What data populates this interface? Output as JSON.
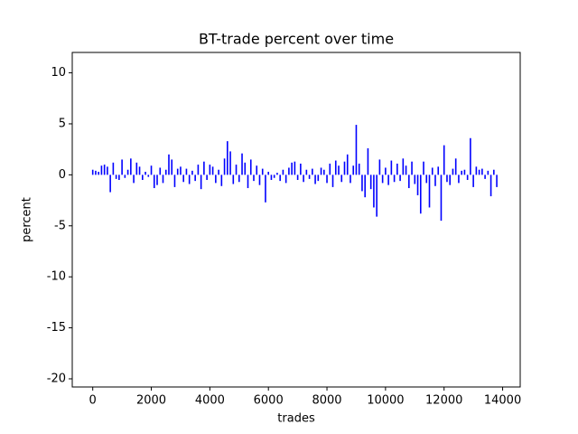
{
  "chart_data": {
    "type": "bar",
    "title": "BT-trade percent over time",
    "xlabel": "trades",
    "ylabel": "percent",
    "color": "#0000ff",
    "x": [
      0,
      100,
      200,
      300,
      400,
      500,
      600,
      700,
      800,
      900,
      1000,
      1100,
      1200,
      1300,
      1400,
      1500,
      1600,
      1700,
      1800,
      1900,
      2000,
      2100,
      2200,
      2300,
      2400,
      2500,
      2600,
      2700,
      2800,
      2900,
      3000,
      3100,
      3200,
      3300,
      3400,
      3500,
      3600,
      3700,
      3800,
      3900,
      4000,
      4100,
      4200,
      4300,
      4400,
      4500,
      4600,
      4700,
      4800,
      4900,
      5000,
      5100,
      5200,
      5300,
      5400,
      5500,
      5600,
      5700,
      5800,
      5900,
      6000,
      6100,
      6200,
      6300,
      6400,
      6500,
      6600,
      6700,
      6800,
      6900,
      7000,
      7100,
      7200,
      7300,
      7400,
      7500,
      7600,
      7700,
      7800,
      7900,
      8000,
      8100,
      8200,
      8300,
      8400,
      8500,
      8600,
      8700,
      8800,
      8900,
      9000,
      9100,
      9200,
      9300,
      9400,
      9500,
      9600,
      9700,
      9800,
      9900,
      10000,
      10100,
      10200,
      10300,
      10400,
      10500,
      10600,
      10700,
      10800,
      10900,
      11000,
      11100,
      11200,
      11300,
      11400,
      11500,
      11600,
      11700,
      11800,
      11900,
      12000,
      12100,
      12200,
      12300,
      12400,
      12500,
      12600,
      12700,
      12800,
      12900,
      13000,
      13100,
      13200,
      13300,
      13400,
      13500,
      13600,
      13700,
      13800
    ],
    "values": [
      0.5,
      0.4,
      0.3,
      0.9,
      1.0,
      0.8,
      -1.7,
      1.2,
      -0.4,
      -0.5,
      1.5,
      -0.3,
      0.5,
      1.6,
      -0.8,
      1.2,
      0.8,
      -0.5,
      0.3,
      -0.2,
      0.9,
      -1.3,
      -1.0,
      0.7,
      -0.8,
      0.5,
      2.0,
      1.5,
      -1.2,
      0.6,
      0.8,
      -0.7,
      0.6,
      -0.9,
      0.4,
      -0.6,
      1.0,
      -1.4,
      1.3,
      -0.5,
      1.0,
      0.8,
      -0.8,
      0.5,
      -1.1,
      1.6,
      3.3,
      2.3,
      -0.9,
      1.0,
      -0.7,
      2.1,
      1.2,
      -1.3,
      1.5,
      -0.6,
      0.9,
      -1.0,
      0.6,
      -2.7,
      0.3,
      -0.5,
      -0.3,
      0.2,
      -0.6,
      0.5,
      -0.8,
      0.7,
      1.2,
      1.3,
      -0.5,
      1.1,
      -0.7,
      0.5,
      -0.4,
      0.6,
      -0.9,
      -0.6,
      0.7,
      0.5,
      -0.8,
      1.1,
      -1.2,
      1.4,
      0.9,
      -0.7,
      1.3,
      2.0,
      -0.8,
      0.9,
      4.9,
      1.1,
      -1.6,
      -2.2,
      2.6,
      -1.4,
      -3.2,
      -4.1,
      1.5,
      -0.8,
      0.7,
      -1.0,
      1.4,
      -0.7,
      1.1,
      -0.6,
      1.6,
      0.9,
      -1.3,
      1.3,
      -0.9,
      -2.0,
      -3.8,
      1.3,
      -0.8,
      -3.2,
      0.7,
      -1.1,
      0.8,
      -4.5,
      2.9,
      -0.7,
      -1.0,
      0.6,
      1.6,
      -0.8,
      0.4,
      0.5,
      -0.5,
      3.6,
      -1.2,
      0.8,
      0.5,
      0.6,
      -0.4,
      0.4,
      -2.1,
      0.5,
      -1.2
    ],
    "xlim": [
      -700,
      14600
    ],
    "xticks": [
      0,
      2000,
      4000,
      6000,
      8000,
      10000,
      12000,
      14000
    ],
    "ylim": [
      -20.8,
      12
    ],
    "yticks": [
      -20,
      -15,
      -10,
      -5,
      0,
      5,
      10
    ]
  }
}
